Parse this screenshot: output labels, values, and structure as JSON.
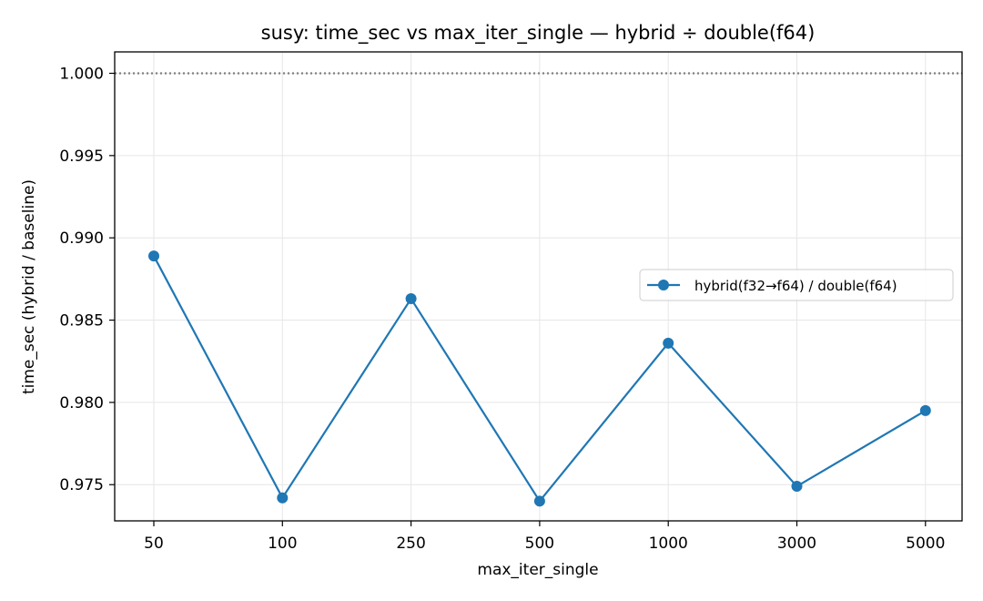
{
  "chart_data": {
    "type": "line",
    "title": "susy: time_sec vs max_iter_single — hybrid ÷ double(f64)",
    "xlabel": "max_iter_single",
    "ylabel": "time_sec (hybrid / baseline)",
    "categories": [
      "50",
      "100",
      "250",
      "500",
      "1000",
      "3000",
      "5000"
    ],
    "series": [
      {
        "name": "hybrid(f32→f64) / double(f64)",
        "color": "#1f77b4",
        "values": [
          0.9889,
          0.9742,
          0.9863,
          0.974,
          0.9836,
          0.9749,
          0.9795
        ]
      }
    ],
    "ylim": [
      0.9728,
      1.0013
    ],
    "yticks": [
      0.975,
      0.98,
      0.985,
      0.99,
      0.995,
      1.0
    ],
    "ytick_labels": [
      "0.975",
      "0.980",
      "0.985",
      "0.990",
      "0.995",
      "1.000"
    ],
    "reference_line": {
      "y": 1.0,
      "style": "dotted",
      "color": "#808080"
    },
    "grid": true,
    "legend_position": "center-right"
  }
}
